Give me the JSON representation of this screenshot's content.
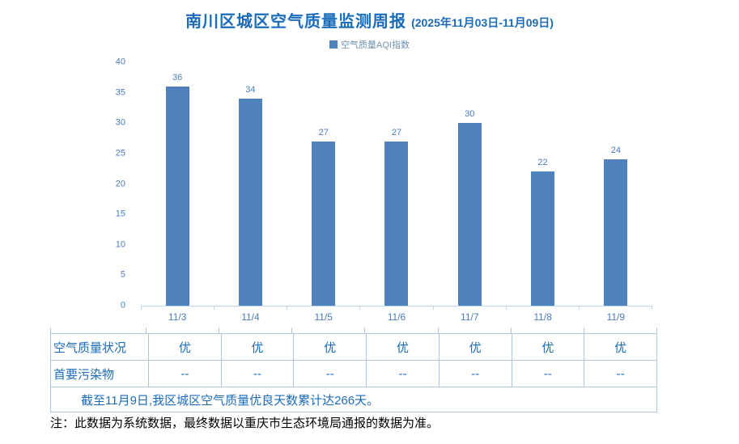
{
  "header": {
    "title": "南川区城区空气质量监测周报",
    "date_range": "(2025年11月03日-11月09日)"
  },
  "chart_data": {
    "type": "bar",
    "title": "南川区城区空气质量监测周报 (2025年11月03日-11月09日)",
    "legend": "空气质量AQI指数",
    "legend_position": "top",
    "categories": [
      "11/3",
      "11/4",
      "11/5",
      "11/6",
      "11/7",
      "11/8",
      "11/9"
    ],
    "values": [
      36,
      34,
      27,
      27,
      30,
      22,
      24
    ],
    "xlabel": "",
    "ylabel": "",
    "ylim": [
      0,
      40
    ],
    "ytick_step": 5,
    "grid": false
  },
  "table": {
    "rows": [
      {
        "label": "空气质量状况",
        "values": [
          "优",
          "优",
          "优",
          "优",
          "优",
          "优",
          "优"
        ]
      },
      {
        "label": "首要污染物",
        "values": [
          "--",
          "--",
          "--",
          "--",
          "--",
          "--",
          "--"
        ]
      }
    ],
    "summary": "截至11月9日,我区城区空气质量优良天数累计达266天。"
  },
  "note": "注：此数据为系统数据，最终数据以重庆市生态环境局通报的数据为准。",
  "colors": {
    "bar": "#4f81bd",
    "primary-blue": "#1a6cba",
    "axis-text": "#4a7dbb",
    "axis-line": "#bdd7ee",
    "table-border": "#b0c6de",
    "legend-text": "#7191ae",
    "note-text": "#000000"
  }
}
